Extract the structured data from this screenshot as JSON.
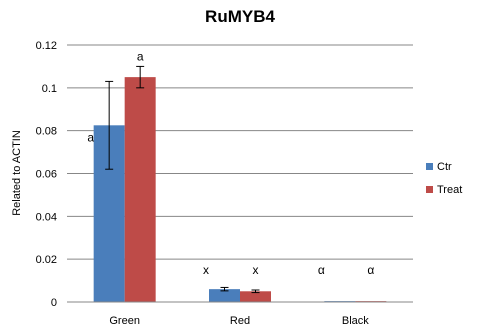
{
  "chart_data": {
    "type": "bar",
    "title": "RuMYB4",
    "xlabel": "",
    "ylabel": "Related to ACTIN",
    "ylim": [
      0,
      0.12
    ],
    "yticks": [
      "0",
      "0.02",
      "0.04",
      "0.06",
      "0.08",
      "0.1",
      "0.12"
    ],
    "grid": true,
    "legend_position": "right",
    "categories": [
      "Green",
      "Red",
      "Black"
    ],
    "series": [
      {
        "name": "Ctr",
        "color": "#4A7EBB",
        "values": [
          0.0825,
          0.006,
          0.0004
        ],
        "errors": [
          0.0205,
          0.0008,
          0.0001
        ],
        "labels": [
          "a",
          "x",
          "α"
        ]
      },
      {
        "name": "Treat",
        "color": "#BE4B48",
        "values": [
          0.105,
          0.005,
          0.0004
        ],
        "errors": [
          0.005,
          0.0006,
          0.0001
        ],
        "labels": [
          "a",
          "x",
          "α"
        ]
      }
    ]
  }
}
